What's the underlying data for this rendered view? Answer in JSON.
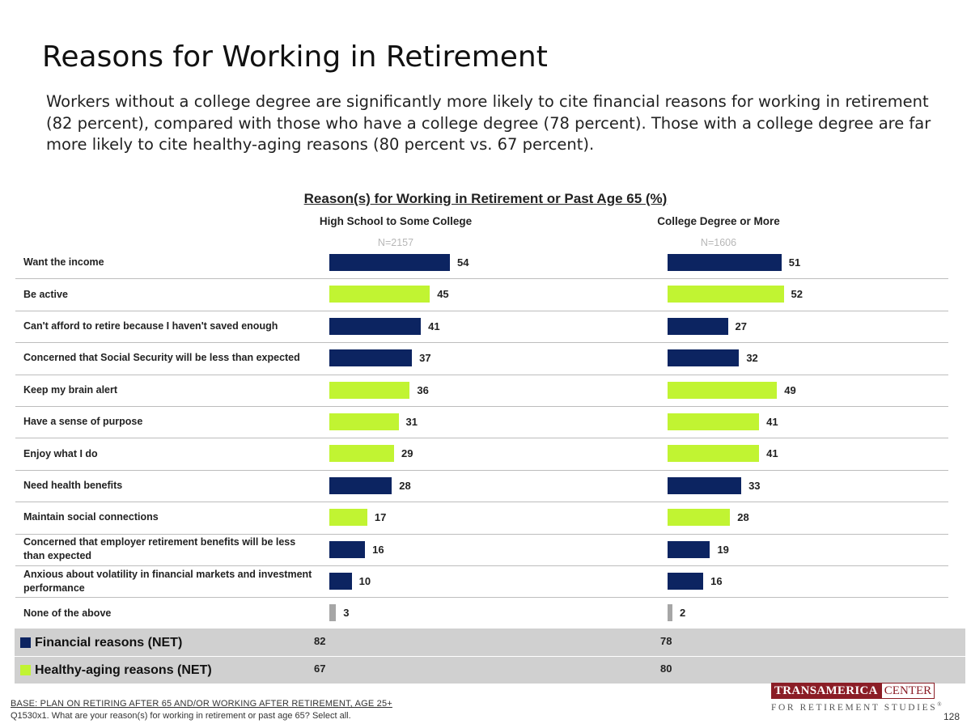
{
  "slide": {
    "title": "Reasons for Working in Retirement",
    "subtitle": "Workers without a college degree are significantly more likely to cite financial reasons for working in retirement (82 percent), compared with those who have a college degree (78 percent). Those with a college degree are far more likely to cite healthy-aging reasons (80 percent vs. 67 percent).",
    "base_note": "BASE:  PLAN ON RETIRING AFTER 65 AND/OR WORKING AFTER RETIREMENT, AGE 25+",
    "question_note": "Q1530x1. What are your reason(s) for working in retirement or past age 65? Select all.",
    "page_number": "128",
    "logo": {
      "left": "TRANSAMERICA",
      "right": "CENTER",
      "bottom": "FOR RETIREMENT STUDIES",
      "mark": "®"
    }
  },
  "colors": {
    "financial": "#0c2461",
    "healthy": "#c1f432",
    "none": "#a6a6a6",
    "band": "#d0d0d0"
  },
  "chart_data": {
    "type": "bar",
    "orientation": "horizontal",
    "title": "Reason(s) for Working in Retirement or Past Age 65 (%)",
    "categories": [
      "Want the income",
      "Be active",
      "Can't afford to retire because I haven't saved enough",
      "Concerned that Social Security will be less than expected",
      "Keep my brain alert",
      "Have a sense of purpose",
      "Enjoy what I do",
      "Need health benefits",
      "Maintain social connections",
      "Concerned that employer retirement benefits will be less than expected",
      "Anxious about volatility in financial markets and investment performance",
      "None of the above"
    ],
    "category_type": [
      "financial",
      "healthy",
      "financial",
      "financial",
      "healthy",
      "healthy",
      "healthy",
      "financial",
      "healthy",
      "financial",
      "financial",
      "none"
    ],
    "series": [
      {
        "name": "High School to Some College",
        "n": "N=2157",
        "values": [
          54,
          45,
          41,
          37,
          36,
          31,
          29,
          28,
          17,
          16,
          10,
          3
        ]
      },
      {
        "name": "College Degree or More",
        "n": "N=1606",
        "values": [
          51,
          52,
          27,
          32,
          49,
          41,
          41,
          33,
          28,
          19,
          16,
          2
        ]
      }
    ],
    "net": [
      {
        "label": "Financial reasons (NET)",
        "type": "financial",
        "values": [
          82,
          78
        ]
      },
      {
        "label": "Healthy-aging reasons (NET)",
        "type": "healthy",
        "values": [
          67,
          80
        ]
      }
    ],
    "xlim": [
      0,
      100
    ]
  }
}
